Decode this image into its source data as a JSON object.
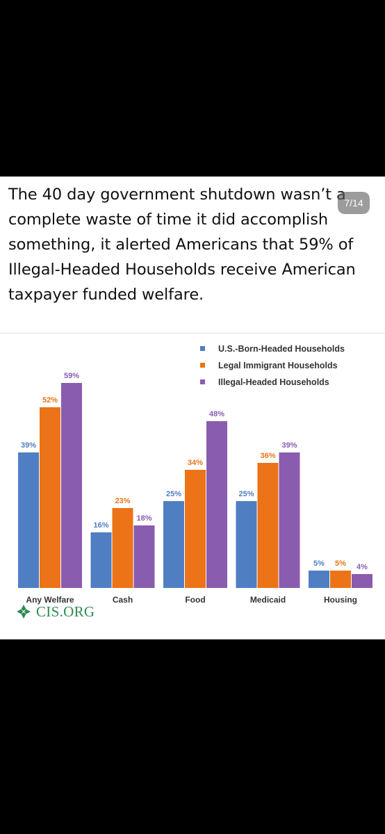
{
  "post": {
    "text": "The 40 day government shutdown wasn’t a complete waste of time it did accomplish something, it alerted Americans that 59% of Illegal-Headed Households receive American taxpayer funded welfare.",
    "image_counter": "7/14"
  },
  "brand": {
    "name": "CIS.ORG",
    "icon": "cis-logo-icon",
    "color": "#2e8a52"
  },
  "chart_data": {
    "type": "bar",
    "categories": [
      "Any Welfare",
      "Cash",
      "Food",
      "Medicaid",
      "Housing"
    ],
    "series": [
      {
        "name": "U.S.-Born-Headed Households",
        "values": [
          39,
          16,
          25,
          25,
          5
        ],
        "labels": [
          "39%",
          "16%",
          "25%",
          "25%",
          "5%"
        ],
        "color": "#4f7ec3"
      },
      {
        "name": "Legal Immigrant Households",
        "values": [
          52,
          23,
          34,
          36,
          5
        ],
        "labels": [
          "52%",
          "23%",
          "34%",
          "36%",
          "5%"
        ],
        "color": "#ec7317"
      },
      {
        "name": "Illegal-Headed Households",
        "values": [
          59,
          18,
          48,
          39,
          4
        ],
        "labels": [
          "59%",
          "18%",
          "48%",
          "39%",
          "4%"
        ],
        "color": "#8a5cb0"
      }
    ],
    "ylim": [
      0,
      60
    ],
    "grid": false,
    "legend": "top-right",
    "value_unit": "%"
  }
}
